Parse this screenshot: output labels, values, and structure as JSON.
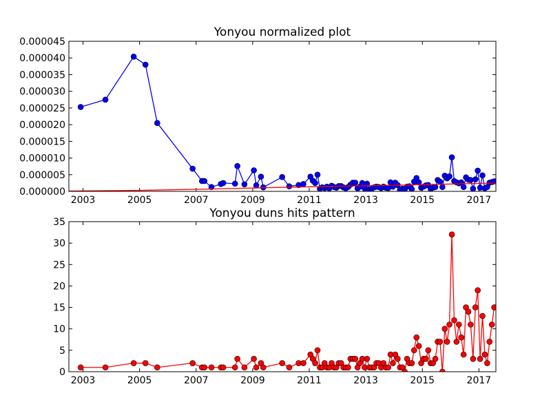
{
  "chart_data": [
    {
      "type": "line",
      "title": "Yonyou normalized plot",
      "xlabel": "",
      "ylabel": "",
      "xlim": [
        2002.5,
        2017.6
      ],
      "ylim": [
        0,
        4.5e-05
      ],
      "x_ticks": [
        2003,
        2005,
        2007,
        2009,
        2011,
        2013,
        2015,
        2017
      ],
      "x_tick_labels": [
        "2003",
        "2005",
        "2007",
        "2009",
        "2011",
        "2013",
        "2015",
        "2017"
      ],
      "y_ticks": [
        0,
        5e-06,
        1e-05,
        1.5e-05,
        2e-05,
        2.5e-05,
        3e-05,
        3.5e-05,
        4e-05,
        4.5e-05
      ],
      "y_tick_labels": [
        "0.000000",
        "0.000005",
        "0.000010",
        "0.000015",
        "0.000020",
        "0.000025",
        "0.000030",
        "0.000035",
        "0.000040",
        "0.000045"
      ],
      "grid": false,
      "series": [
        {
          "color": "#0000ff",
          "marker": "circle",
          "x": [
            2002.917,
            2003.792,
            2004.792,
            2005.208,
            2005.625,
            2006.875,
            2007.208,
            2007.292,
            2007.542,
            2007.875,
            2007.958,
            2008.375,
            2008.458,
            2008.708,
            2009.042,
            2009.125,
            2009.292,
            2009.375,
            2010.042,
            2010.292,
            2010.625,
            2010.792,
            2011.042,
            2011.125,
            2011.208,
            2011.292,
            2011.375,
            2011.458,
            2011.542,
            2011.625,
            2011.708,
            2011.792,
            2011.875,
            2011.958,
            2012.042,
            2012.125,
            2012.208,
            2012.292,
            2012.375,
            2012.458,
            2012.542,
            2012.625,
            2012.708,
            2012.792,
            2012.875,
            2012.958,
            2013.042,
            2013.125,
            2013.208,
            2013.292,
            2013.375,
            2013.458,
            2013.542,
            2013.625,
            2013.708,
            2013.792,
            2013.875,
            2013.958,
            2014.042,
            2014.125,
            2014.208,
            2014.292,
            2014.375,
            2014.458,
            2014.542,
            2014.625,
            2014.708,
            2014.792,
            2014.875,
            2014.958,
            2015.042,
            2015.125,
            2015.208,
            2015.292,
            2015.375,
            2015.458,
            2015.542,
            2015.625,
            2015.708,
            2015.792,
            2015.875,
            2015.958,
            2016.042,
            2016.125,
            2016.208,
            2016.292,
            2016.375,
            2016.458,
            2016.542,
            2016.625,
            2016.708,
            2016.792,
            2016.875,
            2016.958,
            2017.042,
            2017.125,
            2017.208,
            2017.292,
            2017.375,
            2017.458,
            2017.542
          ],
          "y": [
            2.53e-05,
            2.75e-05,
            4.04e-05,
            3.8e-05,
            2.05e-05,
            6.8e-06,
            3.1e-06,
            3.1e-06,
            1.3e-06,
            2.2e-06,
            2.5e-06,
            2.3e-06,
            7.6e-06,
            2.1e-06,
            6.3e-06,
            1.8e-06,
            4.4e-06,
            1.2e-06,
            4.3e-06,
            1.5e-06,
            1.9e-06,
            2.2e-06,
            4.4e-06,
            3.2e-06,
            2.5e-06,
            5e-06,
            8e-07,
            1.2e-06,
            1e-06,
            1.4e-06,
            9e-07,
            1.7e-06,
            1.3e-06,
            1.1e-06,
            1.6e-06,
            1.6e-06,
            1.2e-06,
            9e-07,
            1.3e-06,
            2e-06,
            2.6e-06,
            2.6e-06,
            9e-07,
            1.4e-06,
            2.5e-06,
            9e-07,
            2.3e-06,
            6e-07,
            8e-07,
            1.2e-06,
            1.4e-06,
            1.3e-06,
            1e-06,
            1.4e-06,
            1.1e-06,
            1e-06,
            2.7e-06,
            1.4e-06,
            2.6e-06,
            1.9e-06,
            5e-07,
            8e-07,
            6e-07,
            1.4e-06,
            1.5e-06,
            7e-07,
            2.9e-06,
            4e-06,
            2.7e-06,
            1.1e-06,
            1.4e-06,
            1.8e-06,
            1.9e-06,
            8e-07,
            1.1e-06,
            1.3e-06,
            3.4e-06,
            2.9e-06,
            1.3e-06,
            4.7e-06,
            3.9e-06,
            4.5e-06,
            1.02e-05,
            3.1e-06,
            2.7e-06,
            2.4e-06,
            2.7e-06,
            1.3e-06,
            4.2e-06,
            3.5e-06,
            3.4e-06,
            8e-07,
            3.6e-06,
            6.2e-06,
            1.1e-06,
            4.8e-06,
            9e-07,
            1.3e-06,
            2.6e-06,
            2.8e-06,
            3e-06
          ]
        },
        {
          "color": "#ff0000",
          "marker": "none",
          "x": [
            2002.5,
            2005.0,
            2007.5,
            2010.0,
            2012.5,
            2015.0,
            2017.6
          ],
          "y": [
            1e-07,
            3e-07,
            7e-07,
            1.2e-06,
            1.6e-06,
            2e-06,
            2.5e-06
          ]
        }
      ]
    },
    {
      "type": "line",
      "title": "Yonyou duns hits pattern",
      "xlabel": "",
      "ylabel": "",
      "xlim": [
        2002.5,
        2017.6
      ],
      "ylim": [
        0,
        35
      ],
      "x_ticks": [
        2003,
        2005,
        2007,
        2009,
        2011,
        2013,
        2015,
        2017
      ],
      "x_tick_labels": [
        "2003",
        "2005",
        "2007",
        "2009",
        "2011",
        "2013",
        "2015",
        "2017"
      ],
      "y_ticks": [
        0,
        5,
        10,
        15,
        20,
        25,
        30,
        35
      ],
      "y_tick_labels": [
        "0",
        "5",
        "10",
        "15",
        "20",
        "25",
        "30",
        "35"
      ],
      "grid": false,
      "series": [
        {
          "color": "#ff0000",
          "marker": "circle",
          "x": [
            2002.917,
            2003.792,
            2004.792,
            2005.208,
            2005.625,
            2006.875,
            2007.208,
            2007.292,
            2007.542,
            2007.875,
            2007.958,
            2008.375,
            2008.458,
            2008.708,
            2009.042,
            2009.125,
            2009.292,
            2009.375,
            2010.042,
            2010.292,
            2010.625,
            2010.792,
            2011.042,
            2011.125,
            2011.208,
            2011.292,
            2011.375,
            2011.458,
            2011.542,
            2011.625,
            2011.708,
            2011.792,
            2011.875,
            2011.958,
            2012.042,
            2012.125,
            2012.208,
            2012.292,
            2012.375,
            2012.458,
            2012.542,
            2012.625,
            2012.708,
            2012.792,
            2012.875,
            2012.958,
            2013.042,
            2013.125,
            2013.208,
            2013.292,
            2013.375,
            2013.458,
            2013.542,
            2013.625,
            2013.708,
            2013.792,
            2013.875,
            2013.958,
            2014.042,
            2014.125,
            2014.208,
            2014.292,
            2014.375,
            2014.458,
            2014.542,
            2014.625,
            2014.708,
            2014.792,
            2014.875,
            2014.958,
            2015.042,
            2015.125,
            2015.208,
            2015.292,
            2015.375,
            2015.458,
            2015.542,
            2015.625,
            2015.708,
            2015.792,
            2015.875,
            2015.958,
            2016.042,
            2016.125,
            2016.208,
            2016.292,
            2016.375,
            2016.458,
            2016.542,
            2016.625,
            2016.708,
            2016.792,
            2016.875,
            2016.958,
            2017.042,
            2017.125,
            2017.208,
            2017.292,
            2017.375,
            2017.458,
            2017.542
          ],
          "y": [
            1,
            1,
            2,
            2,
            1,
            2,
            1,
            1,
            1,
            1,
            1,
            1,
            3,
            1,
            3,
            1,
            2,
            1,
            2,
            1,
            2,
            2,
            4,
            3,
            2,
            5,
            1,
            1,
            2,
            1,
            1,
            2,
            1,
            1,
            2,
            2,
            1,
            1,
            1,
            3,
            3,
            3,
            1,
            2,
            3,
            1,
            3,
            1,
            1,
            1,
            2,
            2,
            1,
            2,
            1,
            1,
            4,
            2,
            4,
            3,
            1,
            1,
            0,
            3,
            2,
            2,
            5,
            8,
            6,
            2,
            3,
            3,
            5,
            2,
            2,
            3,
            7,
            7,
            0,
            10,
            7,
            11,
            32,
            12,
            7,
            11,
            8,
            4,
            15,
            14,
            11,
            3,
            15,
            19,
            3,
            13,
            4,
            2,
            7,
            11,
            15
          ]
        }
      ]
    }
  ]
}
